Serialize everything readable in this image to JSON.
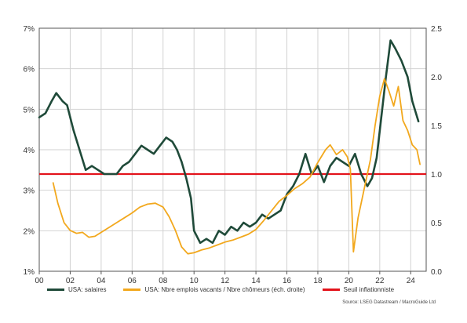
{
  "chart_data": {
    "type": "line",
    "x_ticks": [
      "00",
      "02",
      "04",
      "06",
      "08",
      "10",
      "12",
      "14",
      "16",
      "18",
      "20",
      "22",
      "24"
    ],
    "xlim": [
      2000,
      2024.7
    ],
    "y_left": {
      "ticks": [
        "1%",
        "2%",
        "3%",
        "4%",
        "5%",
        "6%",
        "7%"
      ],
      "ylim": [
        1,
        7
      ]
    },
    "y_right": {
      "ticks": [
        "0.0",
        "0.5",
        "1.0",
        "1.5",
        "2.0",
        "2.5"
      ],
      "ylim": [
        0,
        2.5
      ]
    },
    "threshold": {
      "name": "Seuil inflationniste",
      "value": 3.4,
      "axis": "left",
      "color": "#e3131b"
    },
    "series": [
      {
        "name": "USA: salaires",
        "axis": "left",
        "color": "#1f4a39",
        "points": [
          [
            2000,
            4.8
          ],
          [
            2000.4,
            4.9
          ],
          [
            2000.8,
            5.2
          ],
          [
            2001.1,
            5.4
          ],
          [
            2001.5,
            5.2
          ],
          [
            2001.8,
            5.1
          ],
          [
            2002.2,
            4.5
          ],
          [
            2002.6,
            4.0
          ],
          [
            2003.0,
            3.5
          ],
          [
            2003.4,
            3.6
          ],
          [
            2003.8,
            3.5
          ],
          [
            2004.2,
            3.4
          ],
          [
            2004.6,
            3.4
          ],
          [
            2005.0,
            3.4
          ],
          [
            2005.4,
            3.6
          ],
          [
            2005.8,
            3.7
          ],
          [
            2006.2,
            3.9
          ],
          [
            2006.6,
            4.1
          ],
          [
            2007.0,
            4.0
          ],
          [
            2007.4,
            3.9
          ],
          [
            2007.8,
            4.1
          ],
          [
            2008.2,
            4.3
          ],
          [
            2008.6,
            4.2
          ],
          [
            2008.9,
            4.0
          ],
          [
            2009.2,
            3.7
          ],
          [
            2009.5,
            3.3
          ],
          [
            2009.8,
            2.8
          ],
          [
            2010.0,
            2.0
          ],
          [
            2010.4,
            1.7
          ],
          [
            2010.8,
            1.8
          ],
          [
            2011.2,
            1.7
          ],
          [
            2011.6,
            2.0
          ],
          [
            2012.0,
            1.9
          ],
          [
            2012.4,
            2.1
          ],
          [
            2012.8,
            2.0
          ],
          [
            2013.2,
            2.2
          ],
          [
            2013.6,
            2.1
          ],
          [
            2014.0,
            2.2
          ],
          [
            2014.4,
            2.4
          ],
          [
            2014.8,
            2.3
          ],
          [
            2015.2,
            2.4
          ],
          [
            2015.6,
            2.5
          ],
          [
            2016.0,
            2.9
          ],
          [
            2016.4,
            3.1
          ],
          [
            2016.8,
            3.4
          ],
          [
            2017.2,
            3.9
          ],
          [
            2017.6,
            3.4
          ],
          [
            2018.0,
            3.6
          ],
          [
            2018.4,
            3.2
          ],
          [
            2018.8,
            3.6
          ],
          [
            2019.2,
            3.8
          ],
          [
            2019.6,
            3.7
          ],
          [
            2020.0,
            3.6
          ],
          [
            2020.4,
            3.9
          ],
          [
            2020.8,
            3.4
          ],
          [
            2021.2,
            3.1
          ],
          [
            2021.5,
            3.3
          ],
          [
            2021.8,
            3.8
          ],
          [
            2022.1,
            4.8
          ],
          [
            2022.4,
            5.8
          ],
          [
            2022.7,
            6.7
          ],
          [
            2023.0,
            6.5
          ],
          [
            2023.4,
            6.2
          ],
          [
            2023.8,
            5.8
          ],
          [
            2024.1,
            5.2
          ],
          [
            2024.5,
            4.7
          ]
        ]
      },
      {
        "name": "USA: Nbre emplois vacants / Nbre chômeurs (éch. droite)",
        "axis": "right",
        "color": "#f2a81d",
        "points": [
          [
            2000.9,
            0.91
          ],
          [
            2001.2,
            0.7
          ],
          [
            2001.6,
            0.5
          ],
          [
            2002.0,
            0.42
          ],
          [
            2002.4,
            0.39
          ],
          [
            2002.8,
            0.4
          ],
          [
            2003.2,
            0.35
          ],
          [
            2003.6,
            0.36
          ],
          [
            2004.0,
            0.4
          ],
          [
            2004.5,
            0.45
          ],
          [
            2005.0,
            0.5
          ],
          [
            2005.5,
            0.55
          ],
          [
            2006.0,
            0.6
          ],
          [
            2006.5,
            0.66
          ],
          [
            2007.0,
            0.69
          ],
          [
            2007.5,
            0.7
          ],
          [
            2008.0,
            0.66
          ],
          [
            2008.4,
            0.56
          ],
          [
            2008.8,
            0.42
          ],
          [
            2009.2,
            0.25
          ],
          [
            2009.6,
            0.18
          ],
          [
            2010.0,
            0.19
          ],
          [
            2010.5,
            0.22
          ],
          [
            2011.0,
            0.24
          ],
          [
            2011.5,
            0.27
          ],
          [
            2012.0,
            0.3
          ],
          [
            2012.5,
            0.32
          ],
          [
            2013.0,
            0.35
          ],
          [
            2013.5,
            0.38
          ],
          [
            2014.0,
            0.43
          ],
          [
            2014.5,
            0.52
          ],
          [
            2015.0,
            0.62
          ],
          [
            2015.5,
            0.72
          ],
          [
            2016.0,
            0.78
          ],
          [
            2016.5,
            0.85
          ],
          [
            2017.0,
            0.9
          ],
          [
            2017.5,
            0.97
          ],
          [
            2018.0,
            1.12
          ],
          [
            2018.5,
            1.25
          ],
          [
            2018.8,
            1.3
          ],
          [
            2019.2,
            1.2
          ],
          [
            2019.6,
            1.25
          ],
          [
            2019.9,
            1.18
          ],
          [
            2020.1,
            1.05
          ],
          [
            2020.3,
            0.2
          ],
          [
            2020.6,
            0.55
          ],
          [
            2021.0,
            0.85
          ],
          [
            2021.4,
            1.15
          ],
          [
            2021.7,
            1.5
          ],
          [
            2022.0,
            1.8
          ],
          [
            2022.3,
            1.98
          ],
          [
            2022.6,
            1.85
          ],
          [
            2022.9,
            1.7
          ],
          [
            2023.2,
            1.9
          ],
          [
            2023.5,
            1.55
          ],
          [
            2023.8,
            1.45
          ],
          [
            2024.1,
            1.3
          ],
          [
            2024.4,
            1.25
          ],
          [
            2024.6,
            1.1
          ]
        ]
      }
    ]
  },
  "legend": {
    "salaires": "USA: salaires",
    "emplois": "USA: Nbre emplois vacants / Nbre chômeurs (éch. droite)",
    "seuil": "Seuil inflationniste"
  },
  "source": "Source: LSEG Datastream / MacroGuide Ltd"
}
